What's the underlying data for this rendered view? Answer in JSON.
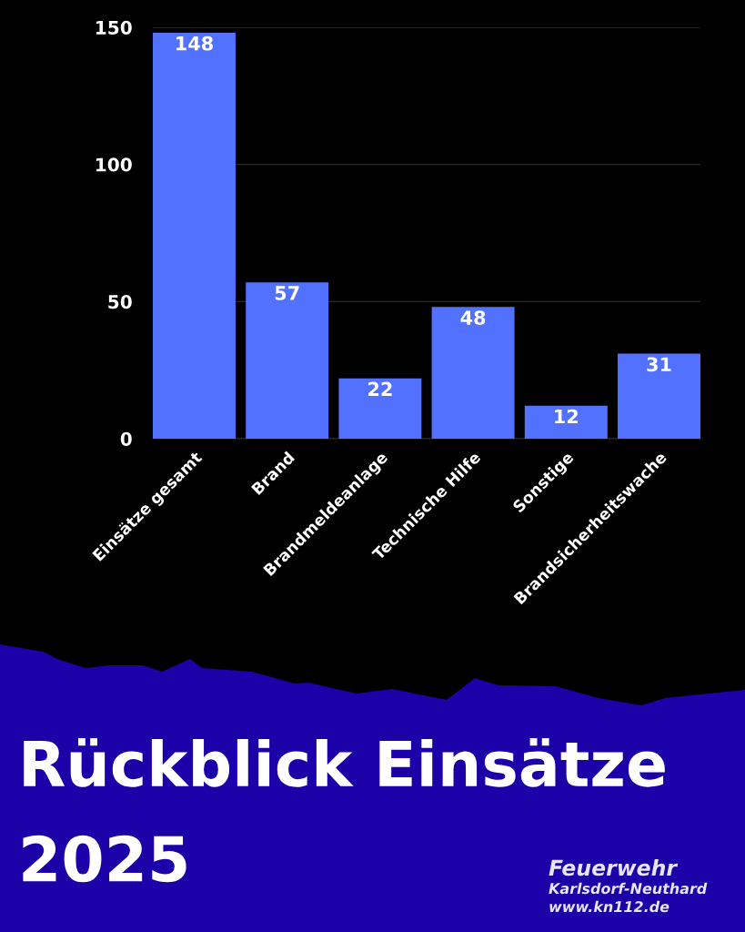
{
  "chart_data": {
    "type": "bar",
    "title": "Rückblick Einsätze 2025",
    "categories": [
      "Einsätze gesamt",
      "Brand",
      "Brandmeldeanlage",
      "Technische Hilfe",
      "Sonstige",
      "Brandsicherheitswache"
    ],
    "values": [
      148,
      57,
      22,
      48,
      12,
      31
    ],
    "color": "#5271ff",
    "ylim": [
      0,
      150
    ],
    "yticks": [
      0,
      50,
      100,
      150
    ],
    "grid": "y",
    "data_labels": true,
    "annotations": [
      "Feuerwehr",
      "Karlsdorf-Neuthard",
      "www.kn112.de"
    ]
  }
}
